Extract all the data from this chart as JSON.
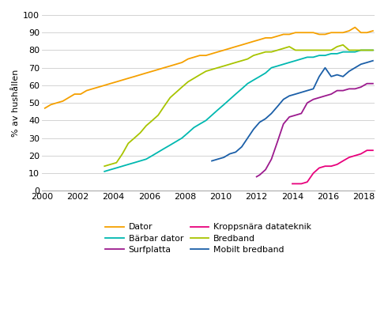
{
  "ylabel": "% av hushållen",
  "xlim": [
    2000,
    2018.6
  ],
  "ylim": [
    0,
    100
  ],
  "xticks": [
    2000,
    2002,
    2004,
    2006,
    2008,
    2010,
    2012,
    2014,
    2016,
    2018
  ],
  "yticks": [
    0,
    10,
    20,
    30,
    40,
    50,
    60,
    70,
    80,
    90,
    100
  ],
  "series": {
    "Dator": {
      "color": "#F5A000",
      "x": [
        2000.17,
        2000.5,
        2000.83,
        2001.17,
        2001.5,
        2001.83,
        2002.17,
        2002.5,
        2002.83,
        2003.17,
        2003.5,
        2003.83,
        2004.17,
        2004.5,
        2004.83,
        2005.17,
        2005.5,
        2005.83,
        2006.17,
        2006.5,
        2006.83,
        2007.17,
        2007.5,
        2007.83,
        2008.17,
        2008.5,
        2008.83,
        2009.17,
        2009.5,
        2009.83,
        2010.17,
        2010.5,
        2010.83,
        2011.17,
        2011.5,
        2011.83,
        2012.17,
        2012.5,
        2012.83,
        2013.17,
        2013.5,
        2013.83,
        2014.17,
        2014.5,
        2014.83,
        2015.17,
        2015.5,
        2015.83,
        2016.17,
        2016.5,
        2016.83,
        2017.17,
        2017.5,
        2017.83,
        2018.17,
        2018.5
      ],
      "y": [
        47,
        49,
        50,
        51,
        53,
        55,
        55,
        57,
        58,
        59,
        60,
        61,
        62,
        63,
        64,
        65,
        66,
        67,
        68,
        69,
        70,
        71,
        72,
        73,
        75,
        76,
        77,
        77,
        78,
        79,
        80,
        81,
        82,
        83,
        84,
        85,
        86,
        87,
        87,
        88,
        89,
        89,
        90,
        90,
        90,
        90,
        89,
        89,
        90,
        90,
        90,
        91,
        93,
        90,
        90,
        91
      ]
    },
    "Bärbar dator": {
      "color": "#00B8B0",
      "x": [
        2003.5,
        2003.83,
        2004.17,
        2004.5,
        2004.83,
        2005.17,
        2005.5,
        2005.83,
        2006.17,
        2006.5,
        2006.83,
        2007.17,
        2007.5,
        2007.83,
        2008.17,
        2008.5,
        2008.83,
        2009.17,
        2009.5,
        2009.83,
        2010.17,
        2010.5,
        2010.83,
        2011.17,
        2011.5,
        2011.83,
        2012.17,
        2012.5,
        2012.83,
        2013.17,
        2013.5,
        2013.83,
        2014.17,
        2014.5,
        2014.83,
        2015.17,
        2015.5,
        2015.83,
        2016.17,
        2016.5,
        2016.83,
        2017.17,
        2017.5,
        2017.83,
        2018.17,
        2018.5
      ],
      "y": [
        11,
        12,
        13,
        14,
        15,
        16,
        17,
        18,
        20,
        22,
        24,
        26,
        28,
        30,
        33,
        36,
        38,
        40,
        43,
        46,
        49,
        52,
        55,
        58,
        61,
        63,
        65,
        67,
        70,
        71,
        72,
        73,
        74,
        75,
        76,
        76,
        77,
        77,
        78,
        78,
        79,
        79,
        79,
        80,
        80,
        80
      ]
    },
    "Surfplatta": {
      "color": "#9C1A8E",
      "x": [
        2012.0,
        2012.17,
        2012.5,
        2012.83,
        2013.17,
        2013.5,
        2013.83,
        2014.17,
        2014.5,
        2014.83,
        2015.17,
        2015.5,
        2015.83,
        2016.17,
        2016.5,
        2016.83,
        2017.17,
        2017.5,
        2017.83,
        2018.17,
        2018.5
      ],
      "y": [
        8,
        9,
        12,
        18,
        28,
        38,
        42,
        43,
        44,
        50,
        52,
        53,
        54,
        55,
        57,
        57,
        58,
        58,
        59,
        61,
        61
      ]
    },
    "Kroppsnära datateknik": {
      "color": "#E8007C",
      "x": [
        2014.0,
        2014.17,
        2014.5,
        2014.83,
        2015.17,
        2015.5,
        2015.83,
        2016.17,
        2016.5,
        2016.83,
        2017.17,
        2017.5,
        2017.83,
        2018.17,
        2018.5
      ],
      "y": [
        4,
        4,
        4,
        5,
        10,
        13,
        14,
        14,
        15,
        17,
        19,
        20,
        21,
        23,
        23
      ]
    },
    "Bredband": {
      "color": "#A8C400",
      "x": [
        2003.5,
        2003.83,
        2004.17,
        2004.5,
        2004.83,
        2005.17,
        2005.5,
        2005.83,
        2006.17,
        2006.5,
        2006.83,
        2007.17,
        2007.5,
        2007.83,
        2008.17,
        2008.5,
        2008.83,
        2009.17,
        2009.5,
        2009.83,
        2010.17,
        2010.5,
        2010.83,
        2011.17,
        2011.5,
        2011.83,
        2012.17,
        2012.5,
        2012.83,
        2013.17,
        2013.5,
        2013.83,
        2014.17,
        2014.5,
        2014.83,
        2015.17,
        2015.5,
        2015.83,
        2016.17,
        2016.5,
        2016.83,
        2017.17,
        2017.5,
        2017.83,
        2018.17,
        2018.5
      ],
      "y": [
        14,
        15,
        16,
        21,
        27,
        30,
        33,
        37,
        40,
        43,
        48,
        53,
        56,
        59,
        62,
        64,
        66,
        68,
        69,
        70,
        71,
        72,
        73,
        74,
        75,
        77,
        78,
        79,
        79,
        80,
        81,
        82,
        80,
        80,
        80,
        80,
        80,
        80,
        80,
        82,
        83,
        80,
        80,
        80,
        80,
        80
      ]
    },
    "Mobilt bredband": {
      "color": "#1B5FA8",
      "x": [
        2009.5,
        2009.83,
        2010.17,
        2010.5,
        2010.83,
        2011.17,
        2011.5,
        2011.83,
        2012.17,
        2012.5,
        2012.83,
        2013.17,
        2013.5,
        2013.83,
        2014.17,
        2014.5,
        2014.83,
        2015.17,
        2015.5,
        2015.83,
        2016.17,
        2016.5,
        2016.83,
        2017.17,
        2017.5,
        2017.83,
        2018.17,
        2018.5
      ],
      "y": [
        17,
        18,
        19,
        21,
        22,
        25,
        30,
        35,
        39,
        41,
        44,
        48,
        52,
        54,
        55,
        56,
        57,
        58,
        65,
        70,
        65,
        66,
        65,
        68,
        70,
        72,
        73,
        74
      ]
    }
  },
  "legend_cols": 2,
  "legend_rows_order": [
    [
      "Dator",
      "Bärbar dator"
    ],
    [
      "Surfplatta",
      "Kroppsnära datateknik"
    ],
    [
      "Bredband",
      "Mobilt bredband"
    ]
  ],
  "background_color": "#ffffff",
  "grid_color": "#cccccc"
}
